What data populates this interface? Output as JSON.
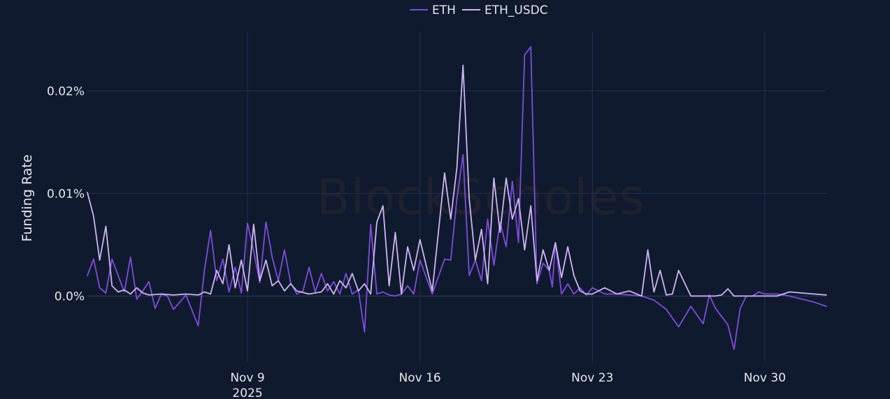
{
  "chart_data": {
    "type": "line",
    "title": "",
    "xlabel": "",
    "ylabel": "Funding Rate",
    "watermark": "BlockScholes",
    "x_tick_labels": [
      {
        "date": "2025-11-09",
        "label": "Nov 9",
        "sublabel": "2025"
      },
      {
        "date": "2025-11-16",
        "label": "Nov 16",
        "sublabel": ""
      },
      {
        "date": "2025-11-23",
        "label": "Nov 23",
        "sublabel": ""
      },
      {
        "date": "2025-11-30",
        "label": "Nov 30",
        "sublabel": ""
      }
    ],
    "y_ticks": [
      {
        "value": 0.0,
        "label": "0.0%"
      },
      {
        "value": 0.01,
        "label": "0.01%"
      },
      {
        "value": 0.02,
        "label": "0.02%"
      }
    ],
    "xlim": [
      "2025-11-02T12:00",
      "2025-12-02T12:00"
    ],
    "ylim": [
      -0.0065,
      0.0258
    ],
    "grid": true,
    "legend": {
      "position": "top-center",
      "orientation": "horizontal"
    },
    "colors": {
      "ETH": "#7c4ddc",
      "ETH_USDC": "#cdb6f2",
      "background": "#101a2e",
      "grid": "#1f3052"
    },
    "series": [
      {
        "name": "ETH",
        "x": [
          "2025-11-02T12:00",
          "2025-11-02T18:00",
          "2025-11-03T00:00",
          "2025-11-03T06:00",
          "2025-11-03T12:00",
          "2025-11-03T18:00",
          "2025-11-04T00:00",
          "2025-11-04T06:00",
          "2025-11-04T12:00",
          "2025-11-04T18:00",
          "2025-11-05T00:00",
          "2025-11-05T06:00",
          "2025-11-05T12:00",
          "2025-11-05T18:00",
          "2025-11-06T00:00",
          "2025-11-06T12:00",
          "2025-11-07T00:00",
          "2025-11-07T06:00",
          "2025-11-07T12:00",
          "2025-11-07T18:00",
          "2025-11-08T00:00",
          "2025-11-08T06:00",
          "2025-11-08T12:00",
          "2025-11-08T18:00",
          "2025-11-09T00:00",
          "2025-11-09T06:00",
          "2025-11-09T12:00",
          "2025-11-09T18:00",
          "2025-11-10T00:00",
          "2025-11-10T06:00",
          "2025-11-10T12:00",
          "2025-11-10T18:00",
          "2025-11-11T00:00",
          "2025-11-11T06:00",
          "2025-11-11T12:00",
          "2025-11-11T18:00",
          "2025-11-12T00:00",
          "2025-11-12T06:00",
          "2025-11-12T12:00",
          "2025-11-12T18:00",
          "2025-11-13T00:00",
          "2025-11-13T06:00",
          "2025-11-13T12:00",
          "2025-11-13T18:00",
          "2025-11-14T00:00",
          "2025-11-14T06:00",
          "2025-11-14T12:00",
          "2025-11-14T18:00",
          "2025-11-15T00:00",
          "2025-11-15T06:00",
          "2025-11-15T12:00",
          "2025-11-15T18:00",
          "2025-11-16T00:00",
          "2025-11-16T12:00",
          "2025-11-17T00:00",
          "2025-11-17T06:00",
          "2025-11-17T12:00",
          "2025-11-17T18:00",
          "2025-11-18T00:00",
          "2025-11-18T06:00",
          "2025-11-18T12:00",
          "2025-11-18T18:00",
          "2025-11-19T00:00",
          "2025-11-19T06:00",
          "2025-11-19T12:00",
          "2025-11-19T18:00",
          "2025-11-20T00:00",
          "2025-11-20T06:00",
          "2025-11-20T12:00",
          "2025-11-20T18:00",
          "2025-11-21T00:00",
          "2025-11-21T06:00",
          "2025-11-21T09:00",
          "2025-11-21T12:00",
          "2025-11-21T18:00",
          "2025-11-22T00:00",
          "2025-11-22T06:00",
          "2025-11-22T12:00",
          "2025-11-22T18:00",
          "2025-11-23T00:00",
          "2025-11-23T12:00",
          "2025-11-24T00:00",
          "2025-11-24T12:00",
          "2025-11-25T00:00",
          "2025-11-25T12:00",
          "2025-11-26T00:00",
          "2025-11-26T12:00",
          "2025-11-27T00:00",
          "2025-11-27T12:00",
          "2025-11-27T18:00",
          "2025-11-28T00:00",
          "2025-11-28T12:00",
          "2025-11-28T18:00",
          "2025-11-29T00:00",
          "2025-11-29T06:00",
          "2025-11-29T12:00",
          "2025-11-29T18:00",
          "2025-11-30T00:00",
          "2025-11-30T12:00",
          "2025-12-01T00:00",
          "2025-12-01T12:00",
          "2025-12-02T00:00",
          "2025-12-02T12:00"
        ],
        "y": [
          0.002,
          0.0036,
          0.0008,
          0.0003,
          0.0036,
          0.002,
          0.0004,
          0.0038,
          -0.0003,
          0.0005,
          0.0014,
          -0.0012,
          0.0002,
          0.0,
          -0.0013,
          0.0001,
          -0.0029,
          0.0025,
          0.0064,
          0.0015,
          0.0036,
          0.0004,
          0.0028,
          0.0003,
          0.0071,
          0.0044,
          0.0013,
          0.0072,
          0.0038,
          0.0015,
          0.0045,
          0.0013,
          0.0002,
          0.0005,
          0.0028,
          0.0004,
          0.0022,
          0.0005,
          0.0014,
          0.0002,
          0.0022,
          0.0002,
          0.0006,
          -0.0035,
          0.007,
          0.0002,
          0.0004,
          0.0001,
          0.0,
          0.0002,
          0.001,
          0.0002,
          0.0035,
          0.0002,
          0.0036,
          0.0035,
          0.0095,
          0.0138,
          0.002,
          0.0035,
          0.0015,
          0.0075,
          0.003,
          0.0072,
          0.0048,
          0.0112,
          0.0052,
          0.0235,
          0.0243,
          0.0012,
          0.0032,
          0.0025,
          0.0009,
          0.0052,
          0.0002,
          0.0012,
          0.0002,
          0.0008,
          0.0001,
          0.0008,
          0.0002,
          0.0002,
          0.0001,
          0.0,
          -0.0004,
          -0.0013,
          -0.003,
          -0.001,
          -0.0027,
          0.0001,
          -0.0012,
          -0.0028,
          -0.0052,
          -0.0012,
          0.0,
          0.0,
          0.0004,
          0.0002,
          0.0002,
          0.0,
          -0.0003,
          -0.0006,
          -0.001
        ]
      },
      {
        "name": "ETH_USDC",
        "x": [
          "2025-11-02T12:00",
          "2025-11-02T18:00",
          "2025-11-03T00:00",
          "2025-11-03T06:00",
          "2025-11-03T12:00",
          "2025-11-03T18:00",
          "2025-11-04T00:00",
          "2025-11-04T06:00",
          "2025-11-04T12:00",
          "2025-11-04T18:00",
          "2025-11-05T00:00",
          "2025-11-05T12:00",
          "2025-11-06T00:00",
          "2025-11-06T12:00",
          "2025-11-07T00:00",
          "2025-11-07T06:00",
          "2025-11-07T12:00",
          "2025-11-07T18:00",
          "2025-11-08T00:00",
          "2025-11-08T06:00",
          "2025-11-08T12:00",
          "2025-11-08T18:00",
          "2025-11-09T00:00",
          "2025-11-09T06:00",
          "2025-11-09T12:00",
          "2025-11-09T18:00",
          "2025-11-10T00:00",
          "2025-11-10T06:00",
          "2025-11-10T12:00",
          "2025-11-10T18:00",
          "2025-11-11T00:00",
          "2025-11-11T12:00",
          "2025-11-12T00:00",
          "2025-11-12T06:00",
          "2025-11-12T12:00",
          "2025-11-12T18:00",
          "2025-11-13T00:00",
          "2025-11-13T06:00",
          "2025-11-13T12:00",
          "2025-11-13T18:00",
          "2025-11-14T00:00",
          "2025-11-14T06:00",
          "2025-11-14T12:00",
          "2025-11-14T18:00",
          "2025-11-15T00:00",
          "2025-11-15T06:00",
          "2025-11-15T12:00",
          "2025-11-15T18:00",
          "2025-11-16T00:00",
          "2025-11-16T12:00",
          "2025-11-17T00:00",
          "2025-11-17T06:00",
          "2025-11-17T12:00",
          "2025-11-17T18:00",
          "2025-11-18T00:00",
          "2025-11-18T06:00",
          "2025-11-18T12:00",
          "2025-11-18T18:00",
          "2025-11-19T00:00",
          "2025-11-19T06:00",
          "2025-11-19T12:00",
          "2025-11-19T18:00",
          "2025-11-20T00:00",
          "2025-11-20T06:00",
          "2025-11-20T12:00",
          "2025-11-20T18:00",
          "2025-11-21T00:00",
          "2025-11-21T06:00",
          "2025-11-21T12:00",
          "2025-11-21T18:00",
          "2025-11-22T00:00",
          "2025-11-22T06:00",
          "2025-11-22T12:00",
          "2025-11-22T18:00",
          "2025-11-23T00:00",
          "2025-11-23T12:00",
          "2025-11-24T00:00",
          "2025-11-24T12:00",
          "2025-11-25T00:00",
          "2025-11-25T06:00",
          "2025-11-25T12:00",
          "2025-11-25T18:00",
          "2025-11-26T00:00",
          "2025-11-26T06:00",
          "2025-11-26T12:00",
          "2025-11-27T00:00",
          "2025-11-27T12:00",
          "2025-11-28T00:00",
          "2025-11-28T06:00",
          "2025-11-28T12:00",
          "2025-11-28T18:00",
          "2025-11-29T00:00",
          "2025-11-29T12:00",
          "2025-11-30T00:00",
          "2025-11-30T12:00",
          "2025-12-01T00:00",
          "2025-12-01T12:00",
          "2025-12-02T00:00",
          "2025-12-02T12:00"
        ],
        "y": [
          0.0101,
          0.0078,
          0.0035,
          0.0068,
          0.001,
          0.0004,
          0.0006,
          0.0002,
          0.0008,
          0.0003,
          0.0001,
          0.0002,
          0.0001,
          0.0002,
          0.0001,
          0.0004,
          0.0002,
          0.0025,
          0.0012,
          0.005,
          0.0008,
          0.0035,
          0.0005,
          0.007,
          0.0015,
          0.0035,
          0.001,
          0.0015,
          0.0005,
          0.0012,
          0.0005,
          0.0002,
          0.0004,
          0.0012,
          0.0002,
          0.0015,
          0.0008,
          0.0022,
          0.0005,
          0.0012,
          0.0002,
          0.0072,
          0.0088,
          0.001,
          0.0062,
          0.0002,
          0.0048,
          0.0025,
          0.0055,
          0.0005,
          0.012,
          0.0075,
          0.0125,
          0.0225,
          0.0095,
          0.0035,
          0.0065,
          0.0012,
          0.0115,
          0.0062,
          0.0115,
          0.0075,
          0.0095,
          0.0045,
          0.0088,
          0.0015,
          0.0045,
          0.0025,
          0.0052,
          0.0018,
          0.0048,
          0.002,
          0.0005,
          0.0002,
          0.0002,
          0.0008,
          0.0002,
          0.0005,
          0.0,
          0.0045,
          0.0004,
          0.0025,
          0.0001,
          0.0002,
          0.0025,
          0.0,
          0.0,
          0.0,
          0.0001,
          0.0007,
          0.0,
          0.0,
          0.0,
          0.0,
          0.0,
          0.0004,
          0.0003,
          0.0002,
          0.0001
        ]
      }
    ]
  }
}
